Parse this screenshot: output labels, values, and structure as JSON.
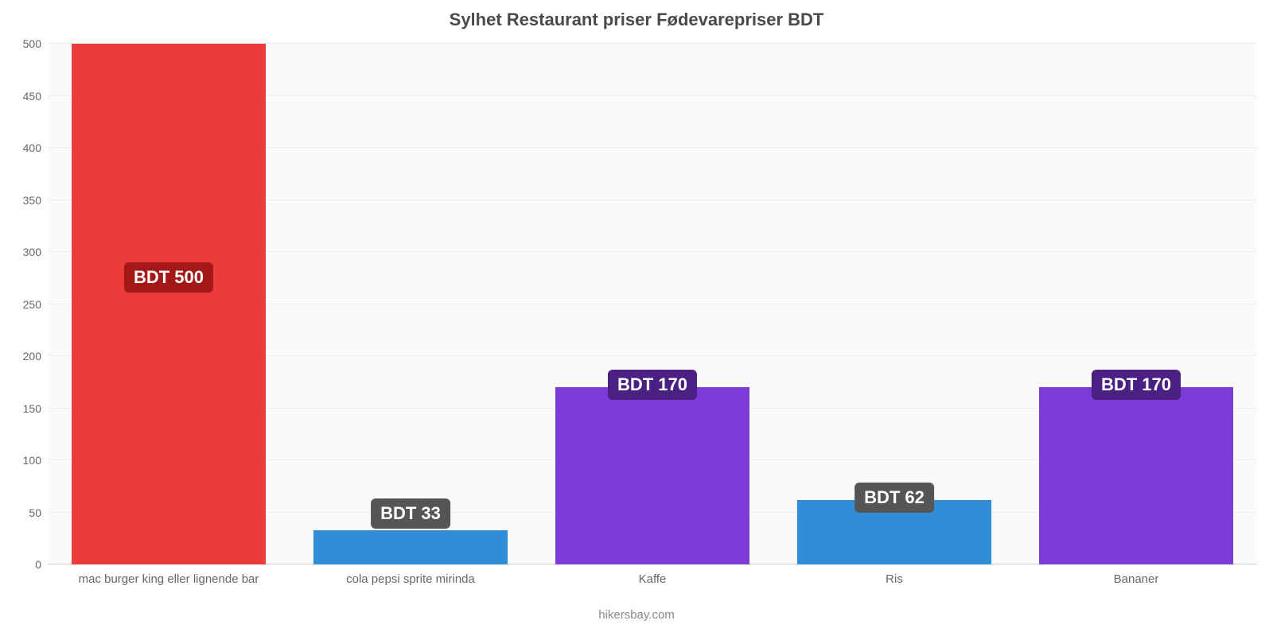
{
  "chart": {
    "type": "bar",
    "title": "Sylhet Restaurant priser Fødevarepriser BDT",
    "title_fontsize": 22,
    "title_color": "#4a4a4a",
    "background_color": "#ffffff",
    "plot_background": "#fafafa",
    "grid_color": "#eeeeee",
    "baseline_color": "#cccccc",
    "ylim": [
      0,
      500
    ],
    "ytick_step": 50,
    "yticks": [
      0,
      50,
      100,
      150,
      200,
      250,
      300,
      350,
      400,
      450,
      500
    ],
    "ytick_fontsize": 14,
    "ytick_color": "#666666",
    "xlabel_fontsize": 15,
    "xlabel_color": "#666666",
    "bar_width_pct": 16,
    "value_label_fontsize": 22,
    "value_label_radius": 6,
    "categories": [
      "mac burger king eller lignende bar",
      "cola pepsi sprite mirinda",
      "Kaffe",
      "Ris",
      "Bananer"
    ],
    "values": [
      500,
      33,
      170,
      62,
      170
    ],
    "value_labels": [
      "BDT 500",
      "BDT 33",
      "BDT 170",
      "BDT 62",
      "BDT 170"
    ],
    "bar_colors": [
      "#eb3b3b",
      "#2f8ed7",
      "#7e3bd7",
      "#2f8ed7",
      "#7e3bd7"
    ],
    "badge_colors": [
      "#a51818",
      "#555555",
      "#4b2083",
      "#555555",
      "#4b2083"
    ],
    "footer": "hikersbay.com",
    "footer_fontsize": 15,
    "footer_color": "#888888"
  }
}
